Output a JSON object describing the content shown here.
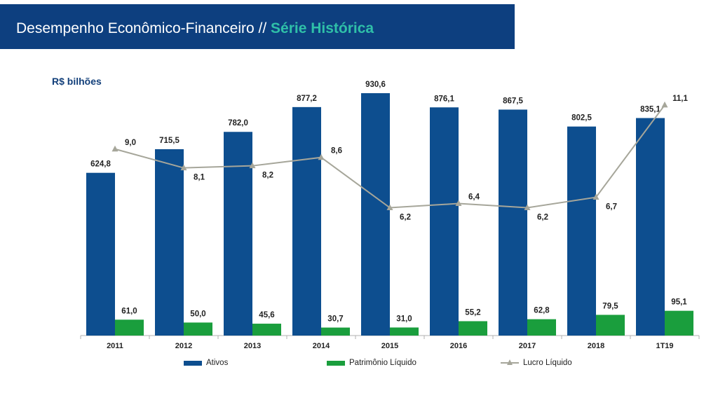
{
  "header": {
    "title_main": "Desempenho Econômico-Financeiro //",
    "title_accent": "Série Histórica",
    "colors": {
      "background": "#0d3f7f",
      "accent": "#2fc0a8"
    }
  },
  "unit_label": "R$ bilhões",
  "chart_data": {
    "type": "bar",
    "categories": [
      "2011",
      "2012",
      "2013",
      "2014",
      "2015",
      "2016",
      "2017",
      "2018",
      "1T19"
    ],
    "series": [
      {
        "name": "Ativos",
        "kind": "bar",
        "color": "#0d4e8f",
        "values": [
          624.8,
          715.5,
          782.0,
          877.2,
          930.6,
          876.1,
          867.5,
          802.5,
          835.1
        ],
        "labels": [
          "624,8",
          "715,5",
          "782,0",
          "877,2",
          "930,6",
          "876,1",
          "867,5",
          "802,5",
          "835,1"
        ]
      },
      {
        "name": "Patrimônio Líquido",
        "kind": "bar",
        "color": "#1a9e3d",
        "values": [
          61.0,
          50.0,
          45.6,
          30.7,
          31.0,
          55.2,
          62.8,
          79.5,
          95.1
        ],
        "labels": [
          "61,0",
          "50,0",
          "45,6",
          "30,7",
          "31,0",
          "55,2",
          "62,8",
          "79,5",
          "95,1"
        ]
      },
      {
        "name": "Lucro Líquido",
        "kind": "line",
        "color": "#a6a69a",
        "values": [
          9.0,
          8.1,
          8.2,
          8.6,
          6.2,
          6.4,
          6.2,
          6.7,
          11.1
        ],
        "labels": [
          "9,0",
          "8,1",
          "8,2",
          "8,6",
          "6,2",
          "6,4",
          "6,2",
          "6,7",
          "11,1"
        ]
      }
    ],
    "title": "Desempenho Econômico-Financeiro // Série Histórica",
    "ylabel": "R$ bilhões",
    "ylim": [
      0,
      960
    ],
    "line_axis_ylim": [
      0,
      12
    ],
    "legend_position": "bottom",
    "grid": false
  }
}
